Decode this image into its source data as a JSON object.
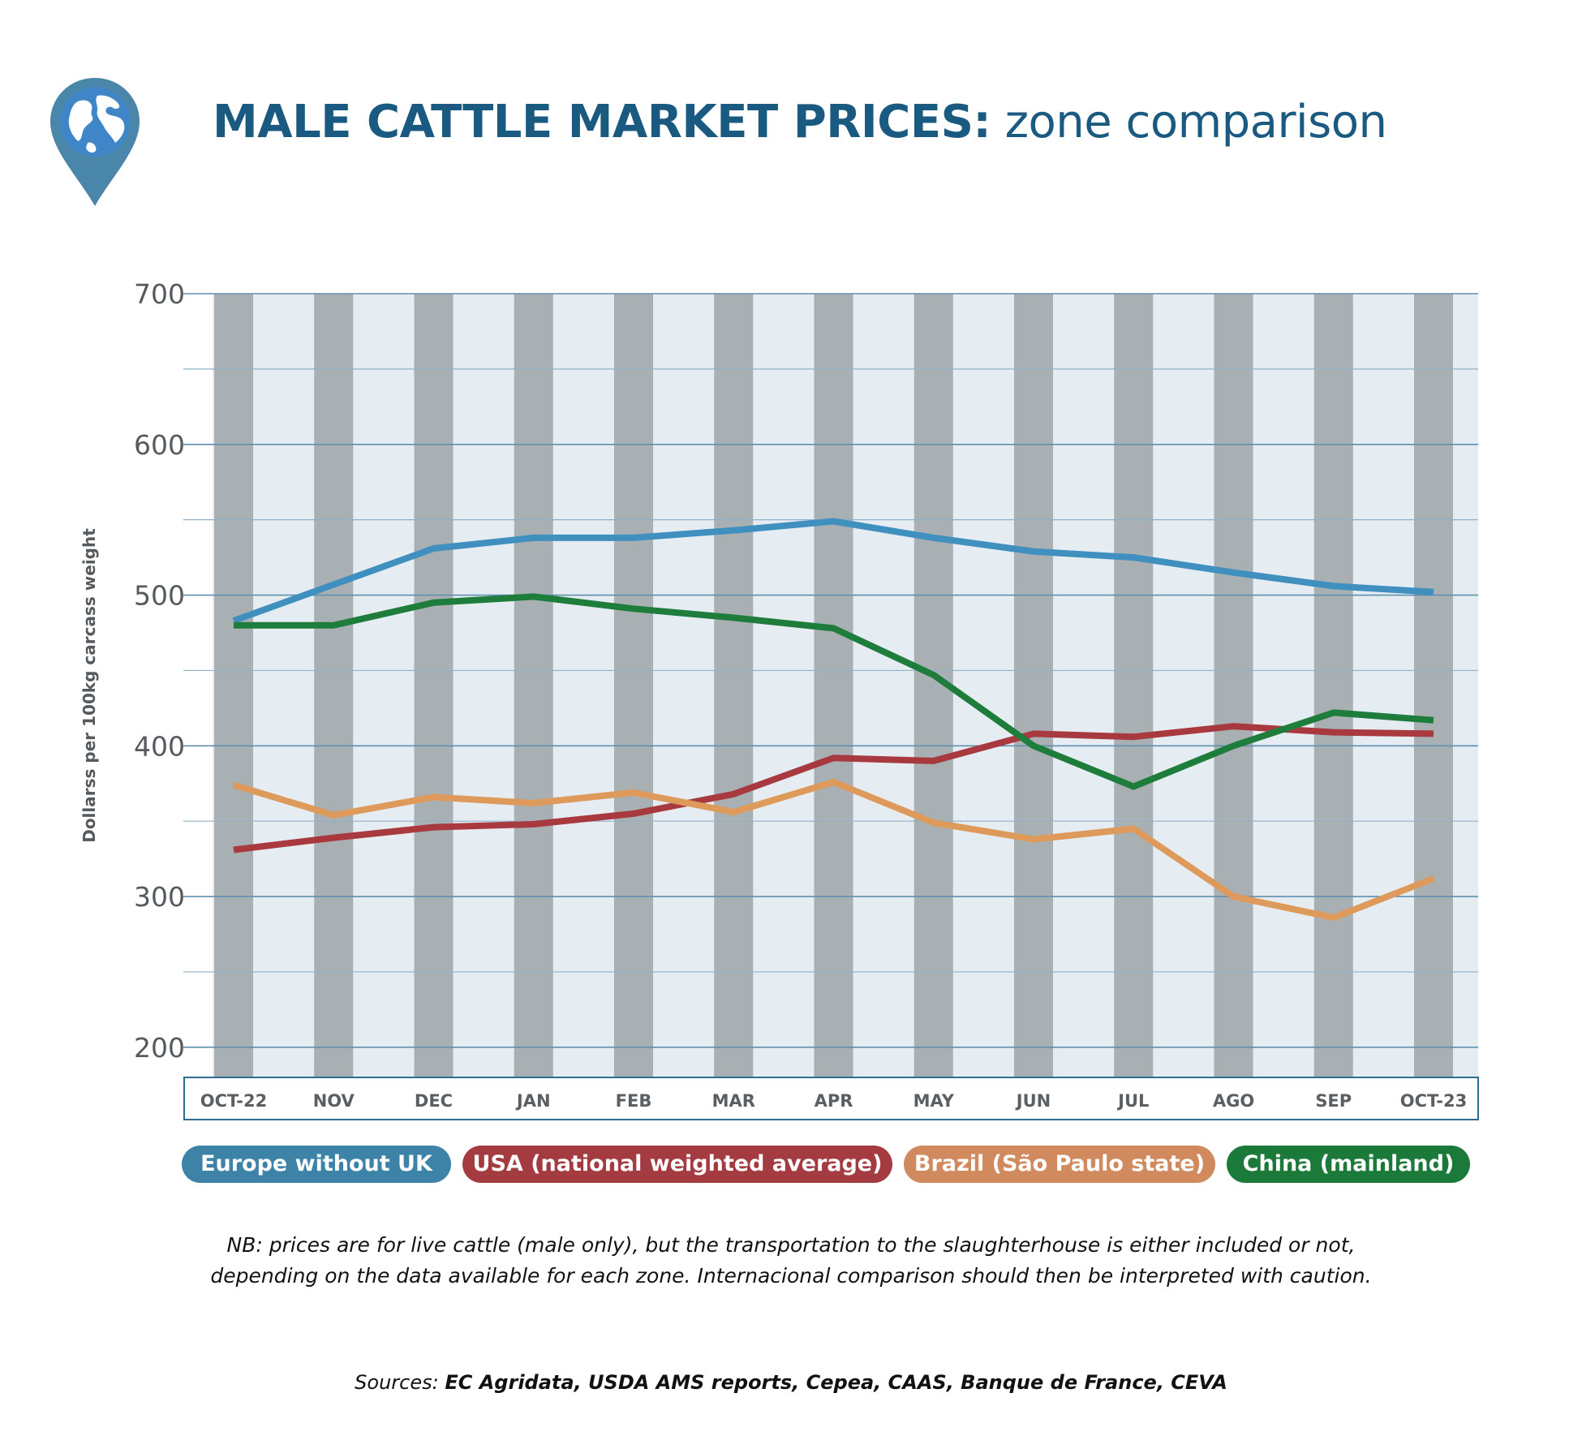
{
  "header": {
    "title_bold": "MALE CATTLE MARKET PRICES:",
    "title_rest": " zone comparison"
  },
  "chart_data": {
    "type": "line",
    "ylabel": "Dollarss per 100kg carcass weight",
    "ylim": [
      180,
      700
    ],
    "yticks": [
      200,
      300,
      400,
      500,
      600,
      700
    ],
    "categories": [
      "OCT-22",
      "NOV",
      "DEC",
      "JAN",
      "FEB",
      "MAR",
      "APR",
      "MAY",
      "JUN",
      "JUL",
      "AGO",
      "SEP",
      "OCT-23"
    ],
    "series": [
      {
        "name": "Europe without UK",
        "color": "#3f8fbf",
        "values": [
          483,
          507,
          531,
          538,
          538,
          543,
          549,
          538,
          529,
          525,
          515,
          506,
          502
        ]
      },
      {
        "name": "USA (national weighted average)",
        "color": "#a83a3f",
        "values": [
          331,
          339,
          346,
          348,
          355,
          368,
          392,
          390,
          408,
          406,
          413,
          409,
          408
        ]
      },
      {
        "name": "Brazil (São Paulo state)",
        "color": "#dd9a5a",
        "values": [
          374,
          354,
          366,
          362,
          369,
          356,
          376,
          349,
          338,
          345,
          300,
          286,
          312
        ]
      },
      {
        "name": "China (mainland)",
        "color": "#1f7d3c",
        "values": [
          480,
          480,
          495,
          499,
          491,
          485,
          478,
          447,
          400,
          373,
          400,
          422,
          417
        ]
      }
    ]
  },
  "legend": [
    {
      "label": "Europe without UK",
      "color": "#3d82a7"
    },
    {
      "label": "USA (national weighted average)",
      "color": "#a33b40"
    },
    {
      "label": "Brazil (São Paulo state)",
      "color": "#d08a5e"
    },
    {
      "label": "China (mainland)",
      "color": "#1b7a3a"
    }
  ],
  "note": {
    "line1": "NB: prices are for live cattle (male only), but the transportation to the slaughterhouse is either included or not,",
    "line2": "depending on the data available for each zone. Internacional comparison should then be interpreted with caution."
  },
  "sources": {
    "prefix": "Sources: ",
    "list": "EC Agridata, USDA AMS reports, Cepea, CAAS, Banque de France, CEVA"
  }
}
